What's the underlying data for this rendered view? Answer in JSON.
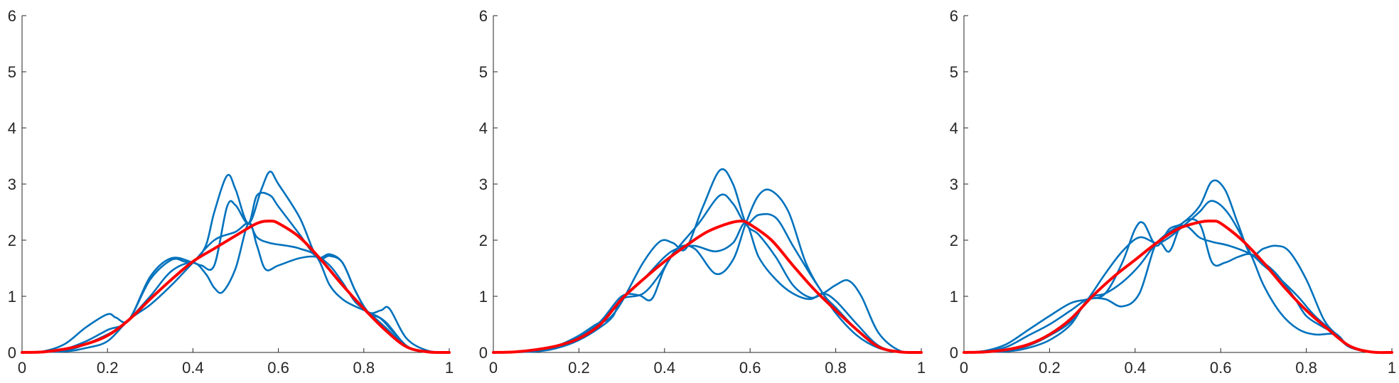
{
  "colors": {
    "samples": "#0072BD",
    "mean": "#FF0000",
    "axis": "#262626"
  },
  "chart_data": [
    {
      "type": "line",
      "xlim": [
        0,
        1
      ],
      "ylim": [
        0,
        6
      ],
      "xticks": [
        0,
        0.2,
        0.4,
        0.6,
        0.8,
        1
      ],
      "xtick_labels": [
        "0",
        "0.2",
        "0.4",
        "0.6",
        "0.8",
        "1"
      ],
      "yticks": [
        0,
        1,
        2,
        3,
        4,
        5,
        6
      ],
      "ytick_labels": [
        "0",
        "1",
        "2",
        "3",
        "4",
        "5",
        "6"
      ],
      "grid": false,
      "series": [
        {
          "role": "sample",
          "x": [
            0,
            0.05,
            0.1,
            0.15,
            0.2,
            0.22,
            0.25,
            0.3,
            0.35,
            0.38,
            0.4,
            0.43,
            0.45,
            0.48,
            0.5,
            0.53,
            0.56,
            0.58,
            0.6,
            0.65,
            0.69,
            0.72,
            0.75,
            0.78,
            0.81,
            0.84,
            0.86,
            0.9,
            0.95,
            1
          ],
          "y": [
            0,
            0.02,
            0.15,
            0.45,
            0.68,
            0.62,
            0.58,
            1.3,
            1.65,
            1.62,
            1.6,
            1.9,
            2.5,
            3.15,
            2.9,
            2.3,
            2.9,
            3.22,
            3.0,
            2.4,
            1.7,
            1.72,
            1.6,
            1.1,
            0.72,
            0.75,
            0.78,
            0.25,
            0.03,
            0
          ]
        },
        {
          "role": "sample",
          "x": [
            0,
            0.05,
            0.1,
            0.15,
            0.2,
            0.25,
            0.3,
            0.35,
            0.4,
            0.42,
            0.45,
            0.48,
            0.5,
            0.53,
            0.55,
            0.58,
            0.6,
            0.65,
            0.69,
            0.72,
            0.75,
            0.78,
            0.81,
            0.84,
            0.87,
            0.9,
            0.95,
            1
          ],
          "y": [
            0,
            0.01,
            0.06,
            0.2,
            0.4,
            0.58,
            1.35,
            1.68,
            1.6,
            1.55,
            1.55,
            2.6,
            2.62,
            2.3,
            2.8,
            2.8,
            2.6,
            2.1,
            1.7,
            1.75,
            1.6,
            1.1,
            0.72,
            0.6,
            0.35,
            0.1,
            0.01,
            0
          ]
        },
        {
          "role": "sample",
          "x": [
            0,
            0.1,
            0.15,
            0.2,
            0.23,
            0.25,
            0.3,
            0.35,
            0.4,
            0.43,
            0.45,
            0.47,
            0.5,
            0.53,
            0.55,
            0.57,
            0.6,
            0.65,
            0.69,
            0.72,
            0.75,
            0.78,
            0.81,
            0.85,
            0.9,
            0.95,
            1
          ],
          "y": [
            0,
            0.04,
            0.15,
            0.32,
            0.45,
            0.58,
            1.0,
            1.45,
            1.6,
            1.4,
            1.15,
            1.08,
            1.5,
            2.3,
            1.9,
            1.48,
            1.55,
            1.68,
            1.7,
            1.55,
            1.25,
            0.9,
            0.72,
            0.45,
            0.1,
            0.01,
            0
          ]
        },
        {
          "role": "sample",
          "x": [
            0,
            0.1,
            0.15,
            0.2,
            0.25,
            0.3,
            0.35,
            0.4,
            0.45,
            0.5,
            0.53,
            0.55,
            0.58,
            0.62,
            0.65,
            0.69,
            0.72,
            0.75,
            0.78,
            0.81,
            0.85,
            0.9,
            0.95,
            1
          ],
          "y": [
            0,
            0.02,
            0.08,
            0.2,
            0.58,
            0.85,
            1.2,
            1.6,
            2.0,
            2.15,
            2.3,
            2.05,
            1.95,
            1.9,
            1.85,
            1.7,
            1.2,
            0.95,
            0.82,
            0.72,
            0.55,
            0.12,
            0.01,
            0
          ]
        },
        {
          "role": "mean",
          "x": [
            0,
            0.05,
            0.1,
            0.15,
            0.2,
            0.25,
            0.3,
            0.35,
            0.4,
            0.45,
            0.5,
            0.55,
            0.58,
            0.6,
            0.65,
            0.7,
            0.75,
            0.8,
            0.85,
            0.9,
            0.95,
            1
          ],
          "y": [
            0,
            0.01,
            0.06,
            0.15,
            0.3,
            0.58,
            0.95,
            1.3,
            1.62,
            1.85,
            2.08,
            2.3,
            2.34,
            2.3,
            2.05,
            1.65,
            1.2,
            0.78,
            0.4,
            0.1,
            0.01,
            0
          ]
        }
      ]
    },
    {
      "type": "line",
      "xlim": [
        0,
        1
      ],
      "ylim": [
        0,
        6
      ],
      "xticks": [
        0,
        0.2,
        0.4,
        0.6,
        0.8,
        1
      ],
      "xtick_labels": [
        "0",
        "0.2",
        "0.4",
        "0.6",
        "0.8",
        "1"
      ],
      "yticks": [
        0,
        1,
        2,
        3,
        4,
        5,
        6
      ],
      "ytick_labels": [
        "0",
        "1",
        "2",
        "3",
        "4",
        "5",
        "6"
      ],
      "grid": false,
      "series": [
        {
          "role": "sample",
          "x": [
            0,
            0.1,
            0.15,
            0.2,
            0.24,
            0.27,
            0.3,
            0.35,
            0.39,
            0.42,
            0.45,
            0.49,
            0.53,
            0.56,
            0.59,
            0.62,
            0.66,
            0.7,
            0.74,
            0.77,
            0.8,
            0.83,
            0.86,
            0.9,
            0.95,
            1
          ],
          "y": [
            0,
            0.03,
            0.12,
            0.3,
            0.5,
            0.6,
            0.9,
            1.6,
            1.98,
            1.95,
            1.85,
            2.6,
            3.25,
            3.0,
            2.3,
            2.1,
            1.7,
            1.2,
            0.98,
            1.05,
            1.2,
            1.28,
            1.0,
            0.35,
            0.03,
            0
          ]
        },
        {
          "role": "sample",
          "x": [
            0,
            0.1,
            0.15,
            0.2,
            0.25,
            0.28,
            0.3,
            0.35,
            0.39,
            0.43,
            0.47,
            0.52,
            0.56,
            0.59,
            0.62,
            0.65,
            0.69,
            0.73,
            0.77,
            0.8,
            0.85,
            0.9,
            0.95,
            1
          ],
          "y": [
            0,
            0.02,
            0.08,
            0.22,
            0.45,
            0.65,
            0.95,
            1.05,
            1.4,
            1.85,
            1.85,
            1.4,
            1.65,
            2.3,
            2.8,
            2.88,
            2.5,
            1.6,
            1.05,
            0.8,
            0.4,
            0.1,
            0.01,
            0
          ]
        },
        {
          "role": "sample",
          "x": [
            0,
            0.1,
            0.15,
            0.2,
            0.25,
            0.3,
            0.34,
            0.37,
            0.4,
            0.43,
            0.48,
            0.53,
            0.56,
            0.59,
            0.62,
            0.66,
            0.7,
            0.74,
            0.77,
            0.8,
            0.85,
            0.9,
            0.95,
            1
          ],
          "y": [
            0,
            0.03,
            0.1,
            0.28,
            0.55,
            1.0,
            1.02,
            0.95,
            1.5,
            1.85,
            2.3,
            2.8,
            2.65,
            2.3,
            2.45,
            2.4,
            1.9,
            1.4,
            1.05,
            0.7,
            0.3,
            0.08,
            0.01,
            0
          ]
        },
        {
          "role": "sample",
          "x": [
            0,
            0.1,
            0.15,
            0.2,
            0.25,
            0.3,
            0.35,
            0.4,
            0.43,
            0.47,
            0.52,
            0.56,
            0.59,
            0.62,
            0.66,
            0.7,
            0.74,
            0.77,
            0.8,
            0.85,
            0.9,
            0.95,
            1
          ],
          "y": [
            0,
            0.02,
            0.1,
            0.25,
            0.5,
            0.95,
            1.3,
            1.7,
            1.85,
            1.9,
            1.8,
            1.95,
            2.3,
            1.7,
            1.3,
            1.05,
            0.95,
            1.05,
            0.92,
            0.5,
            0.12,
            0.01,
            0
          ]
        },
        {
          "role": "mean",
          "x": [
            0,
            0.05,
            0.1,
            0.15,
            0.2,
            0.25,
            0.3,
            0.35,
            0.4,
            0.45,
            0.5,
            0.55,
            0.58,
            0.6,
            0.65,
            0.7,
            0.75,
            0.8,
            0.85,
            0.9,
            0.95,
            1
          ],
          "y": [
            0,
            0.01,
            0.05,
            0.12,
            0.25,
            0.5,
            0.95,
            1.3,
            1.62,
            1.9,
            2.15,
            2.3,
            2.34,
            2.28,
            2.0,
            1.55,
            1.12,
            0.75,
            0.4,
            0.1,
            0.01,
            0
          ]
        }
      ]
    },
    {
      "type": "line",
      "xlim": [
        0,
        1
      ],
      "ylim": [
        0,
        6
      ],
      "xticks": [
        0,
        0.2,
        0.4,
        0.6,
        0.8,
        1
      ],
      "xtick_labels": [
        "0",
        "0.2",
        "0.4",
        "0.6",
        "0.8",
        "1"
      ],
      "yticks": [
        0,
        1,
        2,
        3,
        4,
        5,
        6
      ],
      "ytick_labels": [
        "0",
        "1",
        "2",
        "3",
        "4",
        "5",
        "6"
      ],
      "grid": false,
      "series": [
        {
          "role": "sample",
          "x": [
            0,
            0.05,
            0.1,
            0.15,
            0.2,
            0.25,
            0.29,
            0.33,
            0.37,
            0.4,
            0.42,
            0.45,
            0.48,
            0.51,
            0.55,
            0.58,
            0.61,
            0.64,
            0.67,
            0.7,
            0.73,
            0.76,
            0.8,
            0.84,
            0.87,
            0.9,
            0.95,
            1
          ],
          "y": [
            0,
            0.03,
            0.15,
            0.4,
            0.65,
            0.88,
            0.95,
            1.05,
            1.6,
            2.2,
            2.3,
            1.9,
            2.2,
            2.3,
            2.6,
            3.05,
            2.9,
            2.3,
            1.75,
            1.85,
            1.9,
            1.8,
            1.3,
            0.6,
            0.32,
            0.1,
            0.01,
            0
          ]
        },
        {
          "role": "sample",
          "x": [
            0,
            0.05,
            0.1,
            0.15,
            0.2,
            0.25,
            0.29,
            0.33,
            0.37,
            0.41,
            0.45,
            0.48,
            0.51,
            0.55,
            0.58,
            0.61,
            0.64,
            0.67,
            0.7,
            0.73,
            0.77,
            0.8,
            0.84,
            0.87,
            0.9,
            0.95,
            1
          ],
          "y": [
            0,
            0.02,
            0.1,
            0.3,
            0.5,
            0.75,
            0.95,
            0.95,
            0.82,
            1.05,
            1.95,
            1.8,
            2.3,
            2.3,
            1.6,
            1.6,
            1.7,
            1.75,
            1.6,
            1.4,
            1.0,
            0.65,
            0.45,
            0.33,
            0.12,
            0.01,
            0
          ]
        },
        {
          "role": "sample",
          "x": [
            0,
            0.1,
            0.15,
            0.2,
            0.25,
            0.29,
            0.33,
            0.37,
            0.41,
            0.45,
            0.48,
            0.52,
            0.55,
            0.58,
            0.62,
            0.67,
            0.7,
            0.74,
            0.78,
            0.82,
            0.87,
            0.9,
            0.95,
            1
          ],
          "y": [
            0,
            0.04,
            0.12,
            0.3,
            0.55,
            0.95,
            1.4,
            1.8,
            2.05,
            1.95,
            2.05,
            2.3,
            2.5,
            2.7,
            2.45,
            1.75,
            1.2,
            0.7,
            0.42,
            0.32,
            0.32,
            0.1,
            0.01,
            0
          ]
        },
        {
          "role": "sample",
          "x": [
            0,
            0.1,
            0.15,
            0.2,
            0.25,
            0.29,
            0.33,
            0.37,
            0.41,
            0.45,
            0.49,
            0.52,
            0.55,
            0.58,
            0.62,
            0.67,
            0.7,
            0.74,
            0.78,
            0.82,
            0.87,
            0.9,
            0.95,
            1
          ],
          "y": [
            0,
            0.02,
            0.08,
            0.22,
            0.5,
            0.95,
            1.05,
            1.25,
            1.55,
            1.95,
            2.2,
            2.25,
            2.05,
            1.97,
            1.9,
            1.75,
            1.55,
            1.3,
            1.0,
            0.65,
            0.32,
            0.1,
            0.01,
            0
          ]
        },
        {
          "role": "mean",
          "x": [
            0,
            0.05,
            0.1,
            0.15,
            0.2,
            0.25,
            0.3,
            0.35,
            0.4,
            0.45,
            0.5,
            0.55,
            0.58,
            0.6,
            0.65,
            0.7,
            0.75,
            0.8,
            0.85,
            0.9,
            0.95,
            1
          ],
          "y": [
            0,
            0.01,
            0.05,
            0.14,
            0.32,
            0.6,
            1.0,
            1.35,
            1.65,
            1.95,
            2.2,
            2.32,
            2.34,
            2.3,
            2.0,
            1.6,
            1.15,
            0.75,
            0.42,
            0.12,
            0.01,
            0
          ]
        }
      ]
    }
  ]
}
